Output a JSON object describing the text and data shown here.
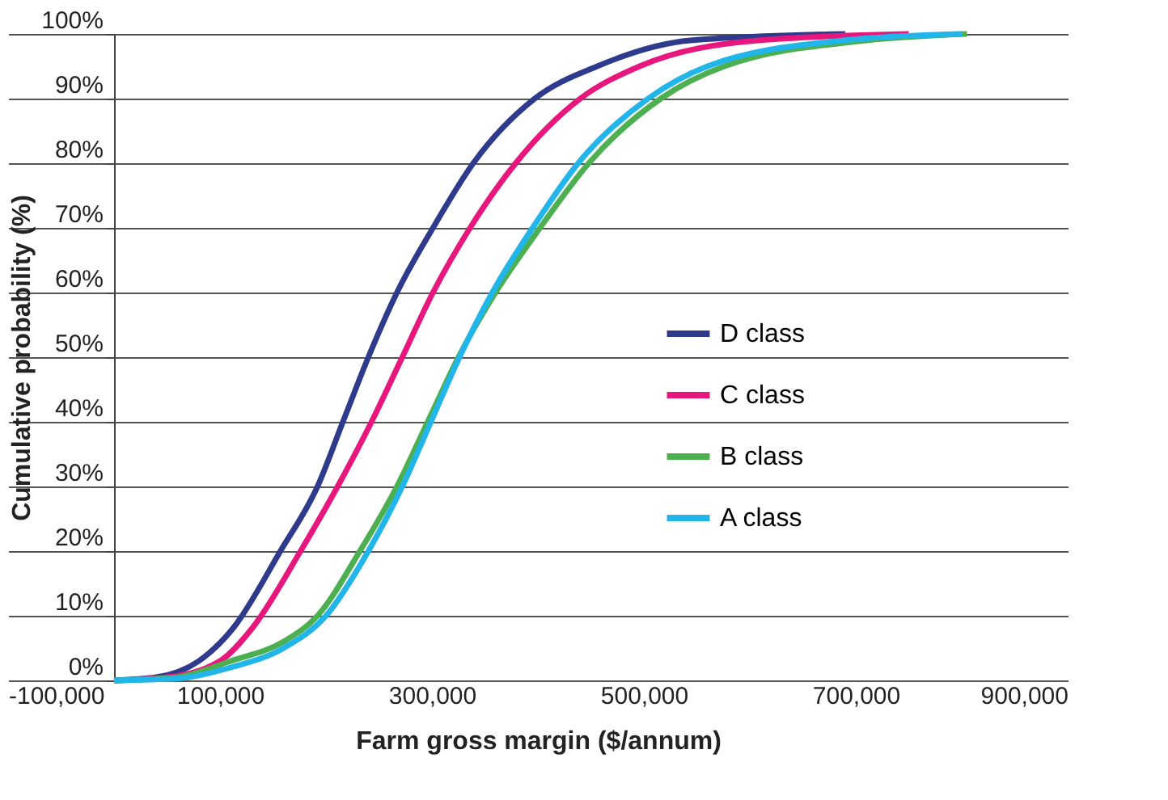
{
  "chart_data": {
    "type": "line",
    "xlabel": "Farm gross margin ($/annum)",
    "ylabel": "Cumulative probability (%)",
    "xlim": [
      -100000,
      900000
    ],
    "xticks": [
      {
        "value": -100000,
        "label": "-100,000"
      },
      {
        "value": 100000,
        "label": "100,000"
      },
      {
        "value": 300000,
        "label": "300,000"
      },
      {
        "value": 500000,
        "label": "500,000"
      },
      {
        "value": 700000,
        "label": "700,000"
      },
      {
        "value": 900000,
        "label": "900,000"
      }
    ],
    "ylim": [
      0,
      100
    ],
    "yticks": [
      {
        "value": 0,
        "label": "0%"
      },
      {
        "value": 10,
        "label": "10%"
      },
      {
        "value": 20,
        "label": "20%"
      },
      {
        "value": 30,
        "label": "30%"
      },
      {
        "value": 40,
        "label": "40%"
      },
      {
        "value": 50,
        "label": "50%"
      },
      {
        "value": 60,
        "label": "60%"
      },
      {
        "value": 70,
        "label": "70%"
      },
      {
        "value": 80,
        "label": "80%"
      },
      {
        "value": 90,
        "label": "90%"
      },
      {
        "value": 100,
        "label": "100%"
      }
    ],
    "grid": "y",
    "legend": "right",
    "marker": "none",
    "line_style": "solid",
    "series": [
      {
        "name": "D class",
        "color": "#2e3a8c",
        "x": [
          0,
          40000,
          80000,
          112000,
          157000,
          192000,
          216000,
          240000,
          267000,
          301000,
          339000,
          397000,
          456000,
          544000,
          690000
        ],
        "values": [
          0,
          0.5,
          3,
          8,
          20,
          30,
          40,
          50,
          60,
          70,
          80,
          90,
          95,
          99,
          100
        ]
      },
      {
        "name": "C class",
        "color": "#e8177d",
        "x": [
          0,
          50000,
          100000,
          130000,
          176000,
          211000,
          243000,
          272000,
          301000,
          336000,
          379000,
          440000,
          496000,
          608000,
          750000
        ],
        "values": [
          0,
          0.5,
          3,
          8,
          20,
          30,
          40,
          50,
          60,
          70,
          80,
          90,
          95,
          99,
          100
        ]
      },
      {
        "name": "B class",
        "color": "#4caf50",
        "x": [
          0,
          60000,
          110000,
          160000,
          192000,
          232000,
          267000,
          296000,
          325000,
          360000,
          402000,
          448000,
          516000,
          576000,
          710000,
          805000
        ],
        "values": [
          0,
          0.5,
          3,
          6,
          10,
          20,
          30,
          40,
          50,
          60,
          70,
          80,
          90,
          95,
          99,
          100
        ]
      },
      {
        "name": "A class",
        "color": "#22b5ea",
        "x": [
          0,
          60000,
          110000,
          160000,
          200000,
          240000,
          272000,
          299000,
          326000,
          357000,
          395000,
          438000,
          504000,
          560000,
          688000,
          800000
        ],
        "values": [
          0,
          0.3,
          2,
          5,
          10,
          20,
          30,
          40,
          50,
          60,
          70,
          80,
          90,
          95,
          99,
          100
        ]
      }
    ]
  }
}
